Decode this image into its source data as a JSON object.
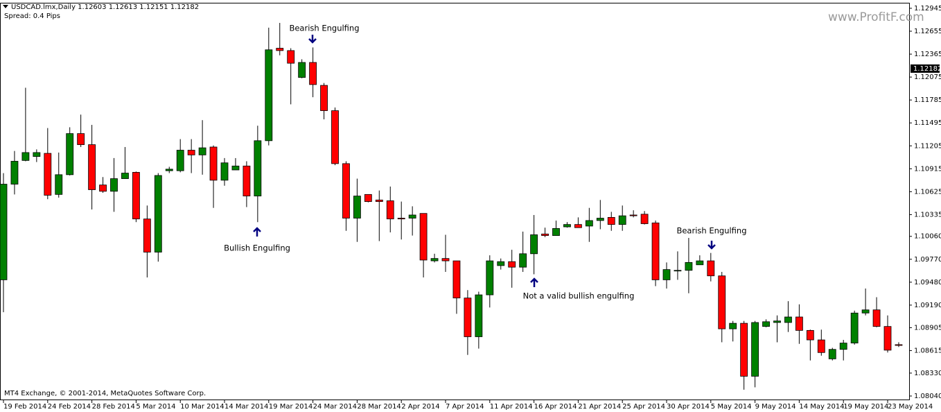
{
  "chart_data": {
    "type": "candlestick",
    "title": "USDCAD.lmx,Daily  1.12603 1.12613 1.12151 1.12182",
    "subtitle": "Spread: 0.4 Pips",
    "footer": "MT4 Exchange, © 2001-2014, MetaQuotes Software Corp.",
    "watermark": "www.ProfitF.com",
    "annotations": [
      "Bearish Engulfing",
      "Bullish Engulfing",
      "Not a valid bullish engulfing",
      "Bearish Engulfing"
    ],
    "current_price": 1.12182,
    "up_color": "#008000",
    "down_color": "#ff0000",
    "categories": [
      "19 Feb 2014",
      null,
      null,
      null,
      "24 Feb 2014",
      null,
      null,
      null,
      "28 Feb 2014",
      null,
      null,
      null,
      "5 Mar 2014",
      null,
      null,
      null,
      "10 Mar 2014",
      null,
      null,
      null,
      "14 Mar 2014",
      null,
      null,
      null,
      "19 Mar 2014",
      null,
      null,
      null,
      "24 Mar 2014",
      null,
      null,
      null,
      "28 Mar 2014",
      null,
      null,
      null,
      "2 Apr 2014",
      null,
      null,
      null,
      "7 Apr 2014",
      null,
      null,
      null,
      "11 Apr 2014",
      null,
      null,
      null,
      "16 Apr 2014",
      null,
      null,
      null,
      "21 Apr 2014",
      null,
      null,
      null,
      "25 Apr 2014",
      null,
      null,
      null,
      "30 Apr 2014",
      null,
      null,
      null,
      "5 May 2014",
      null,
      null,
      null,
      "9 May 2014",
      null,
      null,
      null,
      "14 May 2014",
      null,
      null,
      null,
      "19 May 2014",
      null,
      null,
      null,
      "23 May 2014",
      null
    ],
    "open": [
      1.0951,
      1.1072,
      1.1102,
      1.1107,
      1.1111,
      1.1059,
      1.1084,
      1.1136,
      1.1122,
      1.1071,
      1.1063,
      1.1079,
      1.1087,
      1.1028,
      1.0986,
      1.1089,
      1.1089,
      1.1115,
      1.1109,
      1.1119,
      1.1077,
      1.109,
      1.1095,
      1.1057,
      1.1127,
      1.1244,
      1.1241,
      1.1207,
      1.1226,
      1.1197,
      1.1165,
      1.1098,
      1.1029,
      1.1059,
      1.1052,
      1.1051,
      1.1029,
      1.1029,
      1.1035,
      1.0975,
      1.0978,
      1.0975,
      1.0928,
      1.0879,
      1.0932,
      1.0969,
      1.0974,
      1.0967,
      1.0984,
      1.1009,
      1.1007,
      1.1018,
      1.1021,
      1.1019,
      1.1026,
      1.103,
      1.1021,
      1.1033,
      1.1034,
      1.1023,
      1.0951,
      1.0963,
      1.0963,
      1.097,
      1.0975,
      1.0956,
      1.0889,
      1.0896,
      1.0829,
      1.0892,
      1.0897,
      1.0897,
      1.0904,
      1.0887,
      1.0875,
      1.0851,
      1.0863,
      1.0871,
      1.0909,
      1.0913,
      1.0892,
      1.0869
    ],
    "high": [
      1.1086,
      1.1114,
      1.1194,
      1.1116,
      1.1143,
      1.1112,
      1.1144,
      1.116,
      1.1147,
      1.1081,
      1.1105,
      1.1119,
      1.1088,
      1.1045,
      1.1086,
      1.1094,
      1.1129,
      1.1129,
      1.1153,
      1.1121,
      1.1105,
      1.1105,
      1.1101,
      1.1146,
      1.127,
      1.1276,
      1.1244,
      1.123,
      1.1245,
      1.12,
      1.1169,
      1.1101,
      1.1079,
      1.1059,
      1.1064,
      1.1069,
      1.105,
      1.1044,
      1.1035,
      1.0984,
      1.1008,
      1.0975,
      1.0938,
      1.0936,
      1.0982,
      1.0978,
      1.0989,
      1.1012,
      1.1033,
      1.1017,
      1.1026,
      1.1024,
      1.103,
      1.1042,
      1.1052,
      1.1037,
      1.1045,
      1.1039,
      1.1038,
      1.1026,
      1.0973,
      1.0987,
      1.1004,
      1.0982,
      1.0985,
      1.0961,
      1.0899,
      1.0899,
      1.0899,
      1.0901,
      1.0906,
      1.0924,
      1.092,
      1.0888,
      1.0888,
      1.0865,
      1.0875,
      1.0912,
      1.094,
      1.0929,
      1.0906,
      1.0872
    ],
    "low": [
      1.091,
      1.1059,
      1.1101,
      1.11,
      1.1053,
      1.1055,
      1.1083,
      1.1119,
      1.104,
      1.1061,
      1.1037,
      1.1079,
      1.1024,
      1.0954,
      1.0974,
      1.1086,
      1.1087,
      1.1086,
      1.1084,
      1.1042,
      1.107,
      1.109,
      1.1043,
      1.1024,
      1.1121,
      1.1235,
      1.1173,
      1.1206,
      1.1182,
      1.1154,
      1.1096,
      1.1013,
      1.0999,
      1.1049,
      1.1,
      1.1011,
      1.1002,
      1.1007,
      1.0954,
      1.0973,
      1.0961,
      1.0908,
      1.0856,
      1.0864,
      1.0916,
      1.0964,
      1.0941,
      1.0961,
      1.0958,
      1.1005,
      1.1007,
      1.1017,
      1.1017,
      1.0999,
      1.1015,
      1.1013,
      1.1013,
      1.103,
      1.1021,
      1.0943,
      1.094,
      1.0951,
      1.0934,
      1.097,
      1.0949,
      1.0872,
      1.0873,
      1.0812,
      1.0815,
      1.0891,
      1.0872,
      1.0885,
      1.087,
      1.0849,
      1.0855,
      1.0849,
      1.0849,
      1.0869,
      1.0906,
      1.0891,
      1.0859,
      1.0866
    ],
    "close": [
      1.1072,
      1.1101,
      1.1112,
      1.1112,
      1.1058,
      1.1084,
      1.1136,
      1.1122,
      1.1065,
      1.1063,
      1.1079,
      1.1086,
      1.1028,
      1.0986,
      1.1083,
      1.1091,
      1.1115,
      1.1109,
      1.1118,
      1.1077,
      1.1099,
      1.1095,
      1.1057,
      1.1127,
      1.1242,
      1.1241,
      1.1225,
      1.1226,
      1.1198,
      1.1165,
      1.1098,
      1.1029,
      1.1057,
      1.105,
      1.105,
      1.1028,
      1.1028,
      1.1033,
      1.0976,
      1.0978,
      1.0975,
      1.0928,
      1.0879,
      1.0932,
      1.0975,
      1.0974,
      1.0967,
      1.0984,
      1.1008,
      1.1007,
      1.1016,
      1.1021,
      1.1017,
      1.1026,
      1.1029,
      1.1021,
      1.1032,
      1.1032,
      1.1022,
      1.0951,
      1.0964,
      1.0963,
      1.0973,
      1.0975,
      1.0956,
      1.0889,
      1.0896,
      1.0829,
      1.0897,
      1.0898,
      1.0899,
      1.0904,
      1.0887,
      1.0875,
      1.0859,
      1.0863,
      1.0871,
      1.0909,
      1.0913,
      1.0892,
      1.0862,
      1.0868
    ],
    "ylim": [
      1.07987,
      1.13006
    ],
    "yticks": [
      1.12945,
      1.12655,
      1.12365,
      1.12075,
      1.11785,
      1.11495,
      1.11205,
      1.10915,
      1.10625,
      1.10335,
      {
        "value": 1.1006,
        "label": "1.10060"
      },
      {
        "value": 1.0977,
        "label": "1.09770"
      },
      {
        "value": 1.0948,
        "label": "1.09480"
      },
      {
        "value": 1.0919,
        "label": "1.09190"
      },
      1.08905,
      1.08615,
      {
        "value": 1.0833,
        "label": "1.08330"
      },
      {
        "value": 1.0804,
        "label": "1.08040"
      }
    ]
  }
}
